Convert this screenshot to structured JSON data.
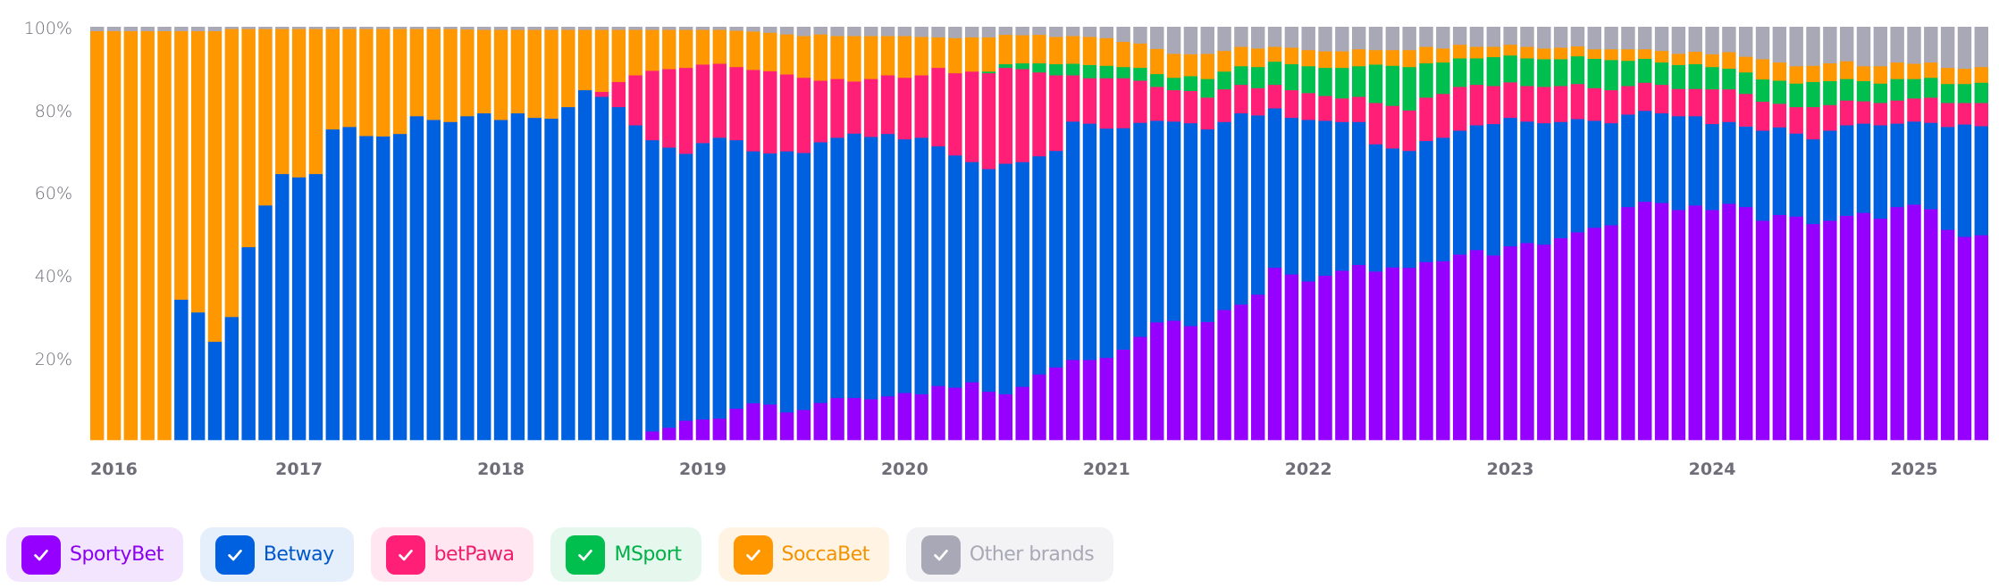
{
  "chart_data": {
    "type": "bar",
    "stacked": true,
    "normalized": true,
    "title": "",
    "xlabel": "",
    "ylabel": "",
    "ylim": [
      0,
      100
    ],
    "y_ticks": [
      "20%",
      "40%",
      "60%",
      "80%",
      "100%"
    ],
    "y_tick_values": [
      20,
      40,
      60,
      80,
      100
    ],
    "x_ticks": [
      "2016",
      "2017",
      "2018",
      "2019",
      "2020",
      "2021",
      "2022",
      "2023",
      "2024",
      "2025"
    ],
    "x_tick_month_index": [
      0,
      12,
      24,
      36,
      48,
      60,
      72,
      84,
      96,
      108
    ],
    "start": "2016-01",
    "end": "2025-05",
    "period": "month",
    "grid": false,
    "legend_position": "bottom-left",
    "series": [
      {
        "name": "SportyBet",
        "color": "#9500ff",
        "values": [
          0,
          0,
          0,
          0,
          0,
          0,
          0,
          0,
          0,
          0,
          0,
          0,
          0,
          0,
          0,
          0,
          0,
          0,
          0,
          0,
          0,
          0,
          0,
          0,
          0,
          0,
          0,
          0,
          0,
          0,
          0,
          0,
          0,
          2.1,
          3.0,
          4.7,
          5.0,
          5.2,
          7.6,
          8.9,
          8.6,
          6.7,
          7.3,
          9.0,
          10.2,
          10.2,
          9.9,
          10.6,
          11.4,
          11.1,
          13.1,
          12.7,
          14.0,
          11.7,
          11.1,
          12.9,
          15.9,
          17.6,
          19.4,
          19.4,
          19.9,
          21.9,
          25.0,
          28.5,
          28.9,
          27.6,
          28.6,
          31.5,
          32.8,
          35.2,
          41.7,
          40.1,
          38.4,
          39.8,
          41.0,
          42.4,
          40.8,
          41.8,
          41.7,
          43.1,
          43.3,
          44.9,
          46.0,
          44.7,
          46.9,
          47.7,
          47.3,
          48.9,
          50.3,
          51.4,
          52.0,
          56.4,
          57.7,
          57.4,
          55.7,
          56.8,
          55.7,
          57.2,
          56.4,
          53.1,
          54.5,
          54.1,
          52.3,
          53.1,
          54.3,
          55.0,
          53.6,
          56.4,
          57.0,
          55.9,
          50.9,
          49.2,
          49.6
        ]
      },
      {
        "name": "Betway",
        "color": "#0061e0",
        "values": [
          0,
          0,
          0,
          0,
          0,
          34.0,
          30.9,
          23.8,
          29.8,
          46.7,
          56.8,
          64.4,
          63.6,
          64.4,
          75.2,
          75.8,
          73.6,
          73.5,
          74.1,
          78.4,
          77.5,
          77.0,
          78.4,
          79.1,
          77.5,
          79.1,
          78.0,
          77.8,
          80.6,
          84.7,
          83.1,
          80.6,
          76.2,
          70.5,
          67.8,
          64.6,
          66.9,
          68.0,
          65.0,
          61.0,
          60.8,
          63.2,
          62.2,
          63.1,
          63.0,
          64.0,
          63.5,
          63.5,
          61.4,
          62.1,
          58.0,
          56.2,
          53.3,
          53.9,
          55.8,
          54.4,
          52.8,
          52.4,
          57.7,
          57.2,
          55.5,
          53.6,
          51.8,
          48.8,
          48.2,
          49.1,
          46.6,
          45.5,
          46.3,
          43.4,
          38.6,
          37.9,
          39.1,
          37.5,
          36.0,
          34.6,
          30.8,
          28.8,
          28.3,
          29.3,
          29.9,
          30.0,
          30.2,
          31.8,
          31.1,
          29.4,
          29.4,
          28.1,
          27.4,
          25.9,
          24.7,
          22.4,
          22.0,
          21.7,
          22.7,
          21.6,
          20.8,
          19.8,
          19.5,
          21.8,
          21.2,
          20.1,
          20.5,
          21.8,
          21.9,
          21.6,
          22.6,
          20.2,
          20.1,
          20.9,
          24.9,
          27.2,
          26.4
        ]
      },
      {
        "name": "betPawa",
        "color": "#ff1f76",
        "values": [
          0,
          0,
          0,
          0,
          0,
          0,
          0,
          0,
          0,
          0,
          0,
          0,
          0,
          0,
          0,
          0,
          0,
          0,
          0,
          0,
          0,
          0,
          0,
          0,
          0,
          0,
          0,
          0,
          0,
          0,
          1.2,
          6.1,
          12.1,
          16.8,
          19.0,
          20.8,
          19.0,
          17.9,
          17.7,
          19.7,
          19.9,
          18.6,
          18.2,
          14.9,
          14.2,
          12.6,
          14.0,
          14.2,
          14.9,
          15.1,
          19.0,
          19.9,
          21.9,
          23.2,
          23.2,
          22.5,
          20.3,
          18.3,
          11.2,
          11.0,
          12.2,
          12.1,
          10.2,
          8.2,
          7.6,
          7.8,
          7.7,
          7.9,
          6.9,
          6.6,
          5.7,
          6.7,
          6.5,
          6.0,
          5.7,
          6.1,
          10.0,
          10.3,
          9.8,
          10.5,
          10.6,
          10.6,
          9.8,
          9.2,
          8.6,
          8.6,
          8.8,
          8.7,
          8.5,
          7.9,
          8.0,
          6.9,
          6.8,
          6.9,
          6.6,
          6.6,
          8.4,
          7.9,
          7.9,
          7.0,
          5.7,
          6.4,
          7.8,
          6.2,
          6.0,
          5.4,
          5.4,
          5.6,
          5.6,
          6.1,
          5.8,
          5.2,
          5.6
        ]
      },
      {
        "name": "MSport",
        "color": "#00bf4f",
        "values": [
          0,
          0,
          0,
          0,
          0,
          0,
          0,
          0,
          0,
          0,
          0,
          0,
          0,
          0,
          0,
          0,
          0,
          0,
          0,
          0,
          0,
          0,
          0,
          0,
          0,
          0,
          0,
          0,
          0,
          0,
          0,
          0,
          0,
          0,
          0,
          0,
          0,
          0,
          0,
          0,
          0,
          0,
          0,
          0,
          0,
          0,
          0,
          0,
          0,
          0,
          0,
          0,
          0,
          0.4,
          0.9,
          1.4,
          2.2,
          2.7,
          2.8,
          3.2,
          3.0,
          2.7,
          3.1,
          3.1,
          3.0,
          3.6,
          4.5,
          4.3,
          4.5,
          5.1,
          5.6,
          6.3,
          6.5,
          6.8,
          7.4,
          7.4,
          9.3,
          9.7,
          10.5,
          8.3,
          7.6,
          6.9,
          6.4,
          7.0,
          6.5,
          6.7,
          6.7,
          6.5,
          6.7,
          7.1,
          7.3,
          6.1,
          5.8,
          5.4,
          5.8,
          6.0,
          5.4,
          5.0,
          5.2,
          5.4,
          5.6,
          5.7,
          6.1,
          5.8,
          5.2,
          4.9,
          4.7,
          5.2,
          4.7,
          4.8,
          4.6,
          4.6,
          4.9
        ]
      },
      {
        "name": "SoccaBet",
        "color": "#ff9800",
        "values": [
          99,
          99,
          99,
          99,
          99,
          65.0,
          68.1,
          75.2,
          69.7,
          52.8,
          42.7,
          35.1,
          35.9,
          35.1,
          24.3,
          23.7,
          25.9,
          26.0,
          25.4,
          21.1,
          22.0,
          22.5,
          21.0,
          20.2,
          21.8,
          20.2,
          21.3,
          21.5,
          18.7,
          14.6,
          15.0,
          12.6,
          11.0,
          9.9,
          9.5,
          9.2,
          8.4,
          8.2,
          8.8,
          9.3,
          9.3,
          9.7,
          10.1,
          11.2,
          10.4,
          11.0,
          10.4,
          9.5,
          10.1,
          9.3,
          7.4,
          8.5,
          8.3,
          8.3,
          7.1,
          6.8,
          6.9,
          6.6,
          6.7,
          6.8,
          6.7,
          6.1,
          5.9,
          6.1,
          5.8,
          5.3,
          6.1,
          5.0,
          4.7,
          4.5,
          3.6,
          4.0,
          3.9,
          4.0,
          4.0,
          4.1,
          3.5,
          3.8,
          4.1,
          4.0,
          3.4,
          3.3,
          2.8,
          2.5,
          2.6,
          2.8,
          2.6,
          2.8,
          2.4,
          2.3,
          2.6,
          2.8,
          2.3,
          2.8,
          2.7,
          3.0,
          3.1,
          4.0,
          3.8,
          4.9,
          4.4,
          4.2,
          3.9,
          4.3,
          4.3,
          3.6,
          4.2,
          4.0,
          3.7,
          3.7,
          3.9,
          3.7,
          3.8
        ]
      },
      {
        "name": "Other brands",
        "color": "#a9a8b6",
        "values": [
          1,
          1,
          1,
          1,
          1,
          1,
          1,
          1,
          0.5,
          0.5,
          0.5,
          0.5,
          0.5,
          0.5,
          0.5,
          0.5,
          0.5,
          0.5,
          0.5,
          0.5,
          0.5,
          0.5,
          0.6,
          0.7,
          0.7,
          0.7,
          0.7,
          0.7,
          0.7,
          0.7,
          0.7,
          0.7,
          0.7,
          0.7,
          0.7,
          0.7,
          0.7,
          0.7,
          0.9,
          1.1,
          1.4,
          1.8,
          2.2,
          1.8,
          2.2,
          2.2,
          2.2,
          2.2,
          2.2,
          2.4,
          2.5,
          2.7,
          2.5,
          2.5,
          1.9,
          2.0,
          1.9,
          2.4,
          2.2,
          2.4,
          2.7,
          3.6,
          4.0,
          5.3,
          6.5,
          6.6,
          6.5,
          5.8,
          4.8,
          5.2,
          4.8,
          5.0,
          5.6,
          5.9,
          5.9,
          5.4,
          5.6,
          5.6,
          5.6,
          4.8,
          5.2,
          4.3,
          4.8,
          4.8,
          4.3,
          4.8,
          5.2,
          5.0,
          4.7,
          5.4,
          5.4,
          5.4,
          5.4,
          5.8,
          6.5,
          6.0,
          6.6,
          6.1,
          7.2,
          7.8,
          8.6,
          9.5,
          9.4,
          8.8,
          8.3,
          9.5,
          9.5,
          8.6,
          8.9,
          8.6,
          9.9,
          10.1,
          9.7
        ]
      }
    ]
  },
  "legend": {
    "items": [
      {
        "label": "SportyBet",
        "checked": true,
        "color": "#9500ff",
        "text_color": "#8a00f0",
        "bg": "#f4e5ff"
      },
      {
        "label": "Betway",
        "checked": true,
        "color": "#0061e0",
        "text_color": "#0056cc",
        "bg": "#e5effc"
      },
      {
        "label": "betPawa",
        "checked": true,
        "color": "#ff1f76",
        "text_color": "#f01c6c",
        "bg": "#ffe6f0"
      },
      {
        "label": "MSport",
        "checked": true,
        "color": "#00bf4f",
        "text_color": "#00b049",
        "bg": "#e6f8ed"
      },
      {
        "label": "SoccaBet",
        "checked": true,
        "color": "#ff9800",
        "text_color": "#f59200",
        "bg": "#fff4e4"
      },
      {
        "label": "Other brands",
        "checked": true,
        "color": "#a9a8b6",
        "text_color": "#a9a8b6",
        "bg": "#f3f3f5"
      }
    ]
  }
}
